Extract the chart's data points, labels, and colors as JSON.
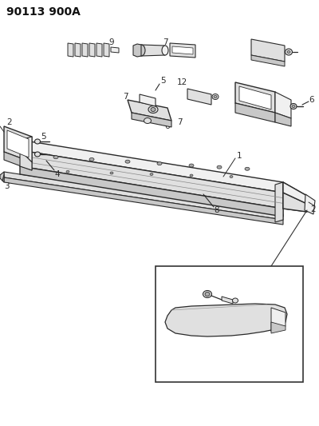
{
  "title": "90113 900A",
  "bg_color": "#ffffff",
  "line_color": "#2a2a2a",
  "fill_light": "#f0f0f0",
  "fill_mid": "#e0e0e0",
  "fill_dark": "#c8c8c8",
  "fill_darker": "#b0b0b0",
  "fig_width": 4.0,
  "fig_height": 5.33,
  "dpi": 100,
  "label_fs": 7.5,
  "title_fs": 10
}
